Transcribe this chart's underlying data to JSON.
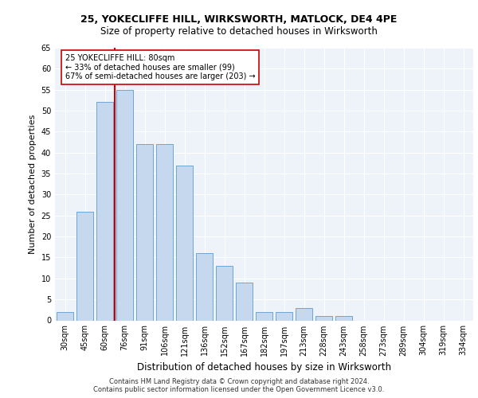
{
  "title1": "25, YOKECLIFFE HILL, WIRKSWORTH, MATLOCK, DE4 4PE",
  "title2": "Size of property relative to detached houses in Wirksworth",
  "xlabel": "Distribution of detached houses by size in Wirksworth",
  "ylabel": "Number of detached properties",
  "bin_labels": [
    "30sqm",
    "45sqm",
    "60sqm",
    "76sqm",
    "91sqm",
    "106sqm",
    "121sqm",
    "136sqm",
    "152sqm",
    "167sqm",
    "182sqm",
    "197sqm",
    "213sqm",
    "228sqm",
    "243sqm",
    "258sqm",
    "273sqm",
    "289sqm",
    "304sqm",
    "319sqm",
    "334sqm"
  ],
  "bar_values": [
    2,
    26,
    52,
    55,
    42,
    42,
    37,
    16,
    13,
    9,
    2,
    2,
    3,
    1,
    1,
    0,
    0,
    0,
    0,
    0,
    0
  ],
  "bar_color": "#c5d8ed",
  "bar_edge_color": "#5b9bd5",
  "highlight_bin_index": 3,
  "vline_color": "#cc0000",
  "annotation_text": "25 YOKECLIFFE HILL: 80sqm\n← 33% of detached houses are smaller (99)\n67% of semi-detached houses are larger (203) →",
  "annotation_box_color": "#ffffff",
  "annotation_box_edge": "#cc0000",
  "footer1": "Contains HM Land Registry data © Crown copyright and database right 2024.",
  "footer2": "Contains public sector information licensed under the Open Government Licence v3.0.",
  "ylim": [
    0,
    65
  ],
  "yticks": [
    0,
    5,
    10,
    15,
    20,
    25,
    30,
    35,
    40,
    45,
    50,
    55,
    60,
    65
  ],
  "bg_color": "#eef3f9",
  "grid_color": "#ffffff",
  "title1_fontsize": 9,
  "title2_fontsize": 8.5,
  "ylabel_fontsize": 8,
  "xlabel_fontsize": 8.5,
  "tick_fontsize": 7,
  "annotation_fontsize": 7,
  "footer_fontsize": 6
}
